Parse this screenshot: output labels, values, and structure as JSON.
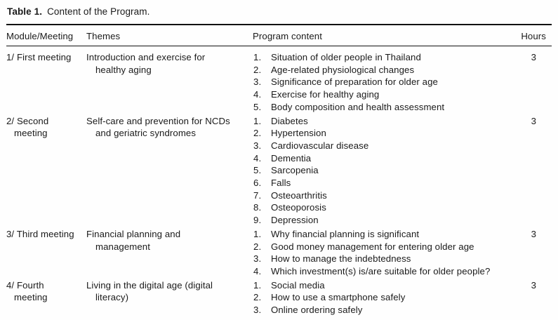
{
  "colors": {
    "text": "#1a1a1a",
    "rule": "#111111",
    "background": "#fefefe"
  },
  "table": {
    "title": {
      "label": "Table 1.",
      "caption": "Content of the Program."
    },
    "columns": {
      "module": "Module/Meeting",
      "themes": "Themes",
      "content": "Program content",
      "hours": "Hours"
    },
    "rows": [
      {
        "module": "1/ First meeting",
        "theme": "Introduction and exercise for healthy aging",
        "items": [
          "Situation of older people in Thailand",
          "Age-related physiological changes",
          "Significance of preparation for older age",
          "Exercise for healthy aging",
          "Body composition and health assessment"
        ],
        "hours": "3"
      },
      {
        "module": "2/ Second meeting",
        "theme": "Self-care and prevention for NCDs and geriatric syndromes",
        "items": [
          "Diabetes",
          "Hypertension",
          "Cardiovascular disease",
          "Dementia",
          "Sarcopenia",
          "Falls",
          "Osteoarthritis",
          "Osteoporosis",
          "Depression"
        ],
        "hours": "3"
      },
      {
        "module": "3/ Third meeting",
        "theme": "Financial planning and management",
        "items": [
          "Why financial planning is significant",
          "Good money management for entering older age",
          "How to manage the indebtedness",
          "Which investment(s) is/are suitable for older people?"
        ],
        "hours": "3"
      },
      {
        "module": "4/ Fourth meeting",
        "theme": "Living in the digital age (digital literacy)",
        "items": [
          "Social media",
          "How to use a smartphone safely",
          "Online ordering safely"
        ],
        "hours": "3"
      }
    ]
  }
}
